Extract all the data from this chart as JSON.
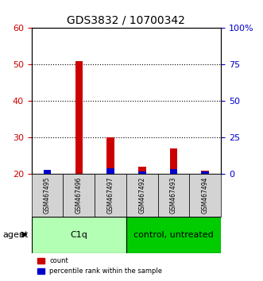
{
  "title": "GDS3832 / 10700342",
  "samples": [
    "GSM467495",
    "GSM467496",
    "GSM467497",
    "GSM467492",
    "GSM467493",
    "GSM467494"
  ],
  "groups": [
    {
      "label": "C1q",
      "indices": [
        0,
        1,
        2
      ],
      "color": "#90ee90"
    },
    {
      "label": "control, untreated",
      "indices": [
        3,
        4,
        5
      ],
      "color": "#00cc00"
    }
  ],
  "red_values": [
    21,
    51,
    30,
    22,
    27,
    21
  ],
  "blue_values": [
    3,
    0.5,
    4,
    2,
    3.5,
    2
  ],
  "red_base": 20,
  "ylim_left": [
    20,
    60
  ],
  "ylim_right": [
    0,
    100
  ],
  "yticks_left": [
    20,
    30,
    40,
    50,
    60
  ],
  "yticks_right": [
    0,
    25,
    50,
    75,
    100
  ],
  "ytick_labels_left": [
    "20",
    "30",
    "40",
    "50",
    "60"
  ],
  "ytick_labels_right": [
    "0",
    "25",
    "50",
    "75",
    "100%"
  ],
  "left_axis_color": "#cc0000",
  "right_axis_color": "#0000cc",
  "bar_width": 0.4,
  "red_color": "#cc0000",
  "blue_color": "#0000cc",
  "legend_count": "count",
  "legend_pct": "percentile rank within the sample",
  "agent_label": "agent",
  "gray_bg": "#d3d3d3",
  "light_green": "#b3ffb3",
  "dark_green": "#00cc00"
}
